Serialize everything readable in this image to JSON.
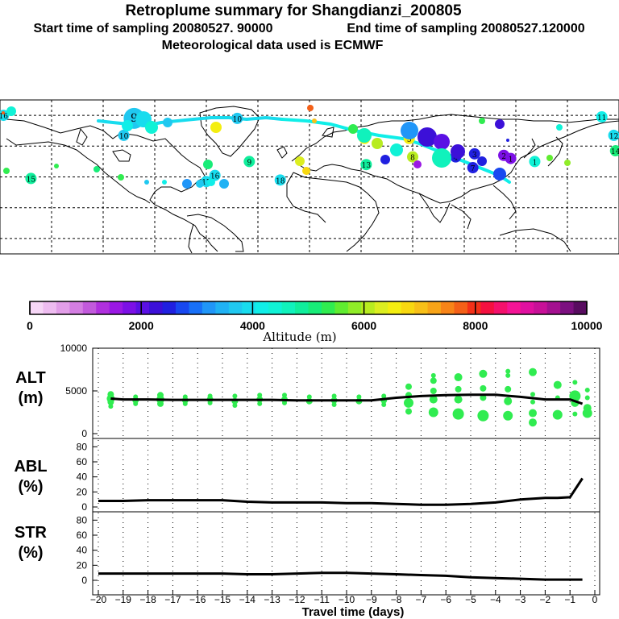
{
  "chart_data": {
    "title": "Retroplume summary for Shangdianzi_200805",
    "start_label": "Start time of sampling 20080527. 90000",
    "end_label": "End time of sampling 20080527.120000",
    "meteo_label": "Meteorological data used is ECMWF",
    "map": {
      "type": "scatter",
      "description_label": "",
      "clusters": [
        {
          "id": "1",
          "lon": 131,
          "lat": 50,
          "alt": 4500
        },
        {
          "id": "1",
          "lon": 117,
          "lat": 52,
          "alt": 1700
        },
        {
          "id": "2",
          "lon": 113,
          "lat": 54,
          "alt": 1800
        },
        {
          "id": "3",
          "lon": 96,
          "lat": 55,
          "alt": 2400
        },
        {
          "id": "4",
          "lon": 85,
          "lat": 53,
          "alt": 2500
        },
        {
          "id": "5",
          "lon": 58,
          "lat": 65,
          "alt": 6500
        },
        {
          "id": "6",
          "lon": 32,
          "lat": 65,
          "alt": 6500
        },
        {
          "id": "7",
          "lon": 95,
          "lat": 46,
          "alt": 2600
        },
        {
          "id": "8",
          "lon": 60,
          "lat": 53,
          "alt": 6000
        },
        {
          "id": "9",
          "lon": -102,
          "lat": 78,
          "alt": 3600
        },
        {
          "id": "9",
          "lon": -35,
          "lat": 50,
          "alt": 4800
        },
        {
          "id": "10",
          "lon": -108,
          "lat": 67,
          "alt": 3800
        },
        {
          "id": "10",
          "lon": -42,
          "lat": 78,
          "alt": 3800
        },
        {
          "id": "11",
          "lon": 170,
          "lat": 79,
          "alt": 4200
        },
        {
          "id": "12",
          "lon": 177,
          "lat": 67,
          "alt": 4000
        },
        {
          "id": "13",
          "lon": 33,
          "lat": 48,
          "alt": 4800
        },
        {
          "id": "14",
          "lon": 178,
          "lat": 57,
          "alt": 5200
        },
        {
          "id": "15",
          "lon": -162,
          "lat": 39,
          "alt": 4900
        },
        {
          "id": "16",
          "lon": -178,
          "lat": 80,
          "alt": 4000
        },
        {
          "id": "16",
          "lon": -55,
          "lat": 41,
          "alt": 3900
        },
        {
          "id": "17",
          "lon": -60,
          "lat": 37,
          "alt": 3900
        },
        {
          "id": "18",
          "lon": -17,
          "lat": 38,
          "alt": 3900
        }
      ]
    },
    "colorbar": {
      "label": "Altitude (m)",
      "ticks": [
        "0",
        "2000",
        "4000",
        "6000",
        "8000",
        "10000"
      ],
      "colors": [
        "#f6d6f6",
        "#eebcf0",
        "#e29ee8",
        "#d47ee2",
        "#c25adc",
        "#b030de",
        "#9a18e4",
        "#7c10e6",
        "#5a10e4",
        "#3c10d8",
        "#2020e0",
        "#1848f0",
        "#1870f8",
        "#2096f8",
        "#20b2f4",
        "#20c8f0",
        "#18dcee",
        "#10eee8",
        "#10f2d6",
        "#10f2bc",
        "#10ee9c",
        "#18ec78",
        "#30ec50",
        "#60ec30",
        "#90ec28",
        "#b8ec20",
        "#dcee20",
        "#f4ee10",
        "#f8d810",
        "#f8c018",
        "#f8a418",
        "#f88418",
        "#f46018",
        "#f43018",
        "#f41040",
        "#f4106c",
        "#f41496",
        "#e010a0",
        "#c81098",
        "#a41090",
        "#7c1080",
        "#580c60"
      ]
    },
    "time_axis": {
      "label": "Travel time (days)",
      "ticks": [
        "-20",
        "-19",
        "-18",
        "-17",
        "-16",
        "-15",
        "-14",
        "-13",
        "-12",
        "-11",
        "-10",
        "-9",
        "-8",
        "-7",
        "-6",
        "-5",
        "-4",
        "-3",
        "-2",
        "-1",
        "0"
      ],
      "range": [
        -20,
        0
      ]
    },
    "alt_panel": {
      "label_line1": "ALT",
      "label_line2": "(m)",
      "yticks": [
        "10000",
        "5000",
        "0"
      ],
      "ylim": [
        0,
        10000
      ],
      "mean_x": [
        -19.5,
        -19,
        -18,
        -17,
        -16,
        -15,
        -14,
        -13,
        -12,
        -11,
        -10,
        -9,
        -8,
        -7,
        -6,
        -5,
        -4,
        -3,
        -2,
        -1.5,
        -1,
        -0.5
      ],
      "mean_y": [
        4100,
        4000,
        4000,
        3950,
        3950,
        3950,
        3950,
        3950,
        3900,
        3900,
        3900,
        3900,
        4200,
        4400,
        4500,
        4550,
        4550,
        4300,
        4000,
        4000,
        4000,
        3500
      ],
      "points": [
        {
          "x": -19.5,
          "y": 4600,
          "s": 4
        },
        {
          "x": -19.5,
          "y": 4100,
          "s": 5
        },
        {
          "x": -19.5,
          "y": 3700,
          "s": 4
        },
        {
          "x": -19.5,
          "y": 3200,
          "s": 3
        },
        {
          "x": -18.5,
          "y": 4300,
          "s": 3
        },
        {
          "x": -18.5,
          "y": 3900,
          "s": 4
        },
        {
          "x": -18.5,
          "y": 3500,
          "s": 3
        },
        {
          "x": -17.5,
          "y": 4500,
          "s": 4
        },
        {
          "x": -17.5,
          "y": 4000,
          "s": 5
        },
        {
          "x": -17.5,
          "y": 3500,
          "s": 4
        },
        {
          "x": -16.5,
          "y": 4300,
          "s": 3
        },
        {
          "x": -16.5,
          "y": 3900,
          "s": 4
        },
        {
          "x": -16.5,
          "y": 3500,
          "s": 3
        },
        {
          "x": -15.5,
          "y": 4400,
          "s": 3
        },
        {
          "x": -15.5,
          "y": 4000,
          "s": 4
        },
        {
          "x": -15.5,
          "y": 3600,
          "s": 3
        },
        {
          "x": -14.5,
          "y": 4400,
          "s": 3
        },
        {
          "x": -14.5,
          "y": 3800,
          "s": 4
        },
        {
          "x": -14.5,
          "y": 3300,
          "s": 3
        },
        {
          "x": -13.5,
          "y": 4500,
          "s": 3
        },
        {
          "x": -13.5,
          "y": 4000,
          "s": 4
        },
        {
          "x": -13.5,
          "y": 3500,
          "s": 3
        },
        {
          "x": -12.5,
          "y": 4500,
          "s": 3
        },
        {
          "x": -12.5,
          "y": 4000,
          "s": 4
        },
        {
          "x": -12.5,
          "y": 3600,
          "s": 3
        },
        {
          "x": -11.5,
          "y": 4300,
          "s": 3
        },
        {
          "x": -11.5,
          "y": 3800,
          "s": 4
        },
        {
          "x": -10.5,
          "y": 4400,
          "s": 3
        },
        {
          "x": -10.5,
          "y": 3900,
          "s": 4
        },
        {
          "x": -10.5,
          "y": 3400,
          "s": 3
        },
        {
          "x": -9.5,
          "y": 4300,
          "s": 3
        },
        {
          "x": -9.5,
          "y": 3800,
          "s": 4
        },
        {
          "x": -8.5,
          "y": 4400,
          "s": 3
        },
        {
          "x": -8.5,
          "y": 3900,
          "s": 4
        },
        {
          "x": -8.5,
          "y": 3400,
          "s": 3
        },
        {
          "x": -7.5,
          "y": 5500,
          "s": 4
        },
        {
          "x": -7.5,
          "y": 4500,
          "s": 4
        },
        {
          "x": -7.5,
          "y": 3600,
          "s": 6
        },
        {
          "x": -7.5,
          "y": 2600,
          "s": 4
        },
        {
          "x": -6.5,
          "y": 6800,
          "s": 3
        },
        {
          "x": -6.5,
          "y": 6200,
          "s": 4
        },
        {
          "x": -6.5,
          "y": 5000,
          "s": 4
        },
        {
          "x": -6.5,
          "y": 4000,
          "s": 5
        },
        {
          "x": -6.5,
          "y": 2500,
          "s": 6
        },
        {
          "x": -5.5,
          "y": 6600,
          "s": 5
        },
        {
          "x": -5.5,
          "y": 5200,
          "s": 4
        },
        {
          "x": -5.5,
          "y": 4000,
          "s": 5
        },
        {
          "x": -5.5,
          "y": 2300,
          "s": 7
        },
        {
          "x": -4.5,
          "y": 7000,
          "s": 5
        },
        {
          "x": -4.5,
          "y": 5300,
          "s": 4
        },
        {
          "x": -4.5,
          "y": 4200,
          "s": 4
        },
        {
          "x": -4.5,
          "y": 2100,
          "s": 7
        },
        {
          "x": -3.5,
          "y": 7300,
          "s": 3
        },
        {
          "x": -3.5,
          "y": 6800,
          "s": 3
        },
        {
          "x": -3.5,
          "y": 5200,
          "s": 4
        },
        {
          "x": -3.5,
          "y": 3800,
          "s": 5
        },
        {
          "x": -3.5,
          "y": 2100,
          "s": 6
        },
        {
          "x": -2.5,
          "y": 7200,
          "s": 5
        },
        {
          "x": -2.5,
          "y": 4600,
          "s": 3
        },
        {
          "x": -2.5,
          "y": 3700,
          "s": 3
        },
        {
          "x": -2.5,
          "y": 2400,
          "s": 5
        },
        {
          "x": -2.5,
          "y": 1300,
          "s": 5
        },
        {
          "x": -1.5,
          "y": 5700,
          "s": 5
        },
        {
          "x": -1.5,
          "y": 4200,
          "s": 3
        },
        {
          "x": -1.5,
          "y": 2200,
          "s": 6
        },
        {
          "x": -0.8,
          "y": 6000,
          "s": 3
        },
        {
          "x": -0.8,
          "y": 4400,
          "s": 7
        },
        {
          "x": -0.8,
          "y": 3600,
          "s": 5
        },
        {
          "x": -0.8,
          "y": 2300,
          "s": 3
        },
        {
          "x": -0.3,
          "y": 5100,
          "s": 3
        },
        {
          "x": -0.3,
          "y": 4200,
          "s": 3
        },
        {
          "x": -0.3,
          "y": 3000,
          "s": 5
        },
        {
          "x": -0.3,
          "y": 2400,
          "s": 6
        }
      ]
    },
    "abl_panel": {
      "label_line1": "ABL",
      "label_line2": "(%)",
      "yticks": [
        "80",
        "60",
        "40",
        "20",
        "0"
      ],
      "ylim": [
        0,
        90
      ],
      "x": [
        -20,
        -19,
        -18,
        -17,
        -16,
        -15,
        -14,
        -13,
        -12,
        -11,
        -10,
        -9,
        -8,
        -7,
        -6,
        -5,
        -4,
        -3,
        -2,
        -1.5,
        -1,
        -0.5
      ],
      "y": [
        8,
        8,
        9,
        9,
        9,
        9,
        7,
        6,
        6,
        6,
        5,
        5,
        4,
        3,
        3,
        4,
        6,
        10,
        12,
        12,
        13,
        38
      ]
    },
    "str_panel": {
      "label_line1": "STR",
      "label_line2": "(%)",
      "yticks": [
        "80",
        "60",
        "40",
        "20",
        "0"
      ],
      "ylim": [
        0,
        90
      ],
      "x": [
        -20,
        -19,
        -18,
        -17,
        -16,
        -15,
        -14,
        -13,
        -12,
        -11,
        -10,
        -9,
        -8,
        -7,
        -6,
        -5,
        -4,
        -3,
        -2,
        -1,
        -0.5
      ],
      "y": [
        9,
        9,
        9,
        9,
        9,
        9,
        8,
        8,
        9,
        10,
        10,
        9,
        8,
        7,
        6,
        4,
        3,
        2,
        1,
        1,
        1
      ]
    }
  }
}
